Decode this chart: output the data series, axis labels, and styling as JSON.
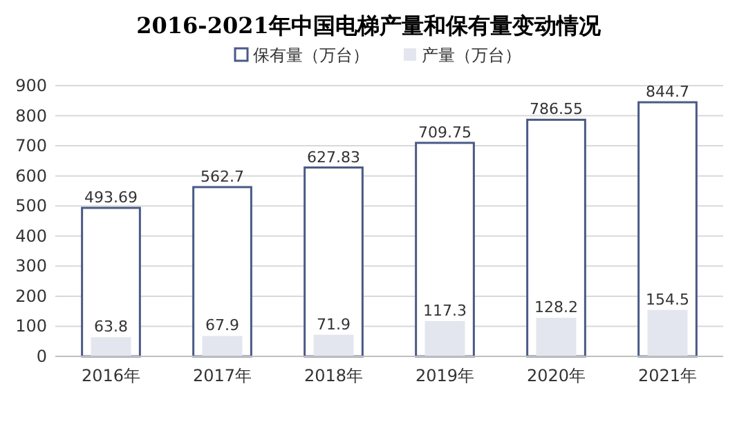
{
  "chart_data": {
    "type": "bar",
    "title": "2016-2021年中国电梯产量和保有量变动情况",
    "categories": [
      "2016年",
      "2017年",
      "2018年",
      "2019年",
      "2020年",
      "2021年"
    ],
    "series": [
      {
        "name": "保有量（万台）",
        "color": "#4a5a86",
        "values": [
          493.69,
          562.7,
          627.83,
          709.75,
          786.55,
          844.7
        ]
      },
      {
        "name": "产量（万台）",
        "color": "#e3e6ee",
        "values": [
          63.8,
          67.9,
          71.9,
          117.3,
          128.2,
          154.5
        ]
      }
    ],
    "ylim": [
      0,
      900
    ],
    "yticks": [
      0,
      100,
      200,
      300,
      400,
      500,
      600,
      700,
      800,
      900
    ],
    "grid": "y",
    "legend": "top",
    "data_labels": true
  }
}
